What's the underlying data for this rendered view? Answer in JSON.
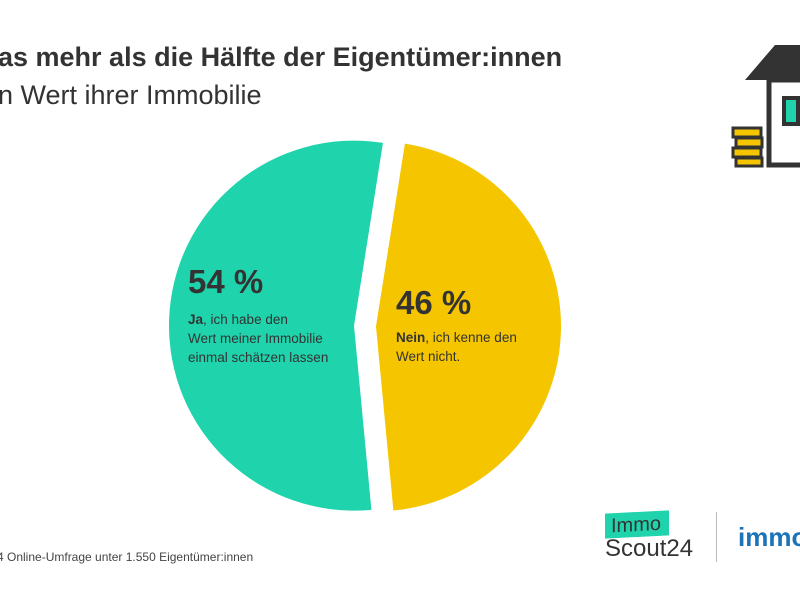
{
  "header": {
    "title": "as mehr als die Hälfte der Eigentümer:innen",
    "subtitle": "n Wert ihrer Immobilie"
  },
  "chart_data": {
    "type": "pie",
    "title": "as mehr als die Hälfte der Eigentümer:innen n Wert ihrer Immobilie",
    "slices": [
      {
        "label_bold": "Nein",
        "label_rest": ", ich kenne den",
        "label_line2": "Wert nicht.",
        "value": 46,
        "display": "46 %",
        "color": "#f5c500"
      },
      {
        "label_bold": "Ja",
        "label_rest": ", ich habe den",
        "label_line2": "Wert meiner Immobilie",
        "label_line3": "einmal schätzen lassen",
        "value": 54,
        "display": "54 %",
        "color": "#1fd3ac"
      }
    ]
  },
  "footer": {
    "source": "4 Online-Umfrage unter 1.550 Eigentümer:innen",
    "logo_immo": "Immo",
    "logo_scout": "Scout24",
    "logo2": "immo"
  }
}
